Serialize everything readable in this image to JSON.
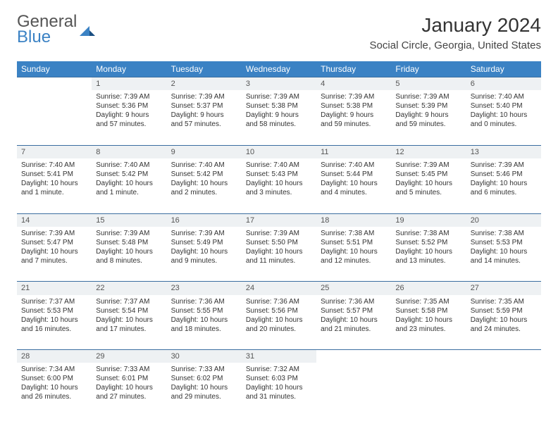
{
  "logo": {
    "line1": "General",
    "line2": "Blue"
  },
  "title": "January 2024",
  "location": "Social Circle, Georgia, United States",
  "colors": {
    "header_bg": "#3b82c4",
    "header_text": "#ffffff",
    "daynum_bg": "#eef1f3",
    "row_border": "#3b6ea0",
    "text": "#333333",
    "logo_gray": "#555555",
    "logo_blue": "#3b82c4",
    "page_bg": "#ffffff"
  },
  "weekdays": [
    "Sunday",
    "Monday",
    "Tuesday",
    "Wednesday",
    "Thursday",
    "Friday",
    "Saturday"
  ],
  "weeks": [
    {
      "days": [
        null,
        {
          "n": "1",
          "sr": "Sunrise: 7:39 AM",
          "ss": "Sunset: 5:36 PM",
          "d1": "Daylight: 9 hours",
          "d2": "and 57 minutes."
        },
        {
          "n": "2",
          "sr": "Sunrise: 7:39 AM",
          "ss": "Sunset: 5:37 PM",
          "d1": "Daylight: 9 hours",
          "d2": "and 57 minutes."
        },
        {
          "n": "3",
          "sr": "Sunrise: 7:39 AM",
          "ss": "Sunset: 5:38 PM",
          "d1": "Daylight: 9 hours",
          "d2": "and 58 minutes."
        },
        {
          "n": "4",
          "sr": "Sunrise: 7:39 AM",
          "ss": "Sunset: 5:38 PM",
          "d1": "Daylight: 9 hours",
          "d2": "and 59 minutes."
        },
        {
          "n": "5",
          "sr": "Sunrise: 7:39 AM",
          "ss": "Sunset: 5:39 PM",
          "d1": "Daylight: 9 hours",
          "d2": "and 59 minutes."
        },
        {
          "n": "6",
          "sr": "Sunrise: 7:40 AM",
          "ss": "Sunset: 5:40 PM",
          "d1": "Daylight: 10 hours",
          "d2": "and 0 minutes."
        }
      ]
    },
    {
      "days": [
        {
          "n": "7",
          "sr": "Sunrise: 7:40 AM",
          "ss": "Sunset: 5:41 PM",
          "d1": "Daylight: 10 hours",
          "d2": "and 1 minute."
        },
        {
          "n": "8",
          "sr": "Sunrise: 7:40 AM",
          "ss": "Sunset: 5:42 PM",
          "d1": "Daylight: 10 hours",
          "d2": "and 1 minute."
        },
        {
          "n": "9",
          "sr": "Sunrise: 7:40 AM",
          "ss": "Sunset: 5:42 PM",
          "d1": "Daylight: 10 hours",
          "d2": "and 2 minutes."
        },
        {
          "n": "10",
          "sr": "Sunrise: 7:40 AM",
          "ss": "Sunset: 5:43 PM",
          "d1": "Daylight: 10 hours",
          "d2": "and 3 minutes."
        },
        {
          "n": "11",
          "sr": "Sunrise: 7:40 AM",
          "ss": "Sunset: 5:44 PM",
          "d1": "Daylight: 10 hours",
          "d2": "and 4 minutes."
        },
        {
          "n": "12",
          "sr": "Sunrise: 7:39 AM",
          "ss": "Sunset: 5:45 PM",
          "d1": "Daylight: 10 hours",
          "d2": "and 5 minutes."
        },
        {
          "n": "13",
          "sr": "Sunrise: 7:39 AM",
          "ss": "Sunset: 5:46 PM",
          "d1": "Daylight: 10 hours",
          "d2": "and 6 minutes."
        }
      ]
    },
    {
      "days": [
        {
          "n": "14",
          "sr": "Sunrise: 7:39 AM",
          "ss": "Sunset: 5:47 PM",
          "d1": "Daylight: 10 hours",
          "d2": "and 7 minutes."
        },
        {
          "n": "15",
          "sr": "Sunrise: 7:39 AM",
          "ss": "Sunset: 5:48 PM",
          "d1": "Daylight: 10 hours",
          "d2": "and 8 minutes."
        },
        {
          "n": "16",
          "sr": "Sunrise: 7:39 AM",
          "ss": "Sunset: 5:49 PM",
          "d1": "Daylight: 10 hours",
          "d2": "and 9 minutes."
        },
        {
          "n": "17",
          "sr": "Sunrise: 7:39 AM",
          "ss": "Sunset: 5:50 PM",
          "d1": "Daylight: 10 hours",
          "d2": "and 11 minutes."
        },
        {
          "n": "18",
          "sr": "Sunrise: 7:38 AM",
          "ss": "Sunset: 5:51 PM",
          "d1": "Daylight: 10 hours",
          "d2": "and 12 minutes."
        },
        {
          "n": "19",
          "sr": "Sunrise: 7:38 AM",
          "ss": "Sunset: 5:52 PM",
          "d1": "Daylight: 10 hours",
          "d2": "and 13 minutes."
        },
        {
          "n": "20",
          "sr": "Sunrise: 7:38 AM",
          "ss": "Sunset: 5:53 PM",
          "d1": "Daylight: 10 hours",
          "d2": "and 14 minutes."
        }
      ]
    },
    {
      "days": [
        {
          "n": "21",
          "sr": "Sunrise: 7:37 AM",
          "ss": "Sunset: 5:53 PM",
          "d1": "Daylight: 10 hours",
          "d2": "and 16 minutes."
        },
        {
          "n": "22",
          "sr": "Sunrise: 7:37 AM",
          "ss": "Sunset: 5:54 PM",
          "d1": "Daylight: 10 hours",
          "d2": "and 17 minutes."
        },
        {
          "n": "23",
          "sr": "Sunrise: 7:36 AM",
          "ss": "Sunset: 5:55 PM",
          "d1": "Daylight: 10 hours",
          "d2": "and 18 minutes."
        },
        {
          "n": "24",
          "sr": "Sunrise: 7:36 AM",
          "ss": "Sunset: 5:56 PM",
          "d1": "Daylight: 10 hours",
          "d2": "and 20 minutes."
        },
        {
          "n": "25",
          "sr": "Sunrise: 7:36 AM",
          "ss": "Sunset: 5:57 PM",
          "d1": "Daylight: 10 hours",
          "d2": "and 21 minutes."
        },
        {
          "n": "26",
          "sr": "Sunrise: 7:35 AM",
          "ss": "Sunset: 5:58 PM",
          "d1": "Daylight: 10 hours",
          "d2": "and 23 minutes."
        },
        {
          "n": "27",
          "sr": "Sunrise: 7:35 AM",
          "ss": "Sunset: 5:59 PM",
          "d1": "Daylight: 10 hours",
          "d2": "and 24 minutes."
        }
      ]
    },
    {
      "days": [
        {
          "n": "28",
          "sr": "Sunrise: 7:34 AM",
          "ss": "Sunset: 6:00 PM",
          "d1": "Daylight: 10 hours",
          "d2": "and 26 minutes."
        },
        {
          "n": "29",
          "sr": "Sunrise: 7:33 AM",
          "ss": "Sunset: 6:01 PM",
          "d1": "Daylight: 10 hours",
          "d2": "and 27 minutes."
        },
        {
          "n": "30",
          "sr": "Sunrise: 7:33 AM",
          "ss": "Sunset: 6:02 PM",
          "d1": "Daylight: 10 hours",
          "d2": "and 29 minutes."
        },
        {
          "n": "31",
          "sr": "Sunrise: 7:32 AM",
          "ss": "Sunset: 6:03 PM",
          "d1": "Daylight: 10 hours",
          "d2": "and 31 minutes."
        },
        null,
        null,
        null
      ]
    }
  ]
}
